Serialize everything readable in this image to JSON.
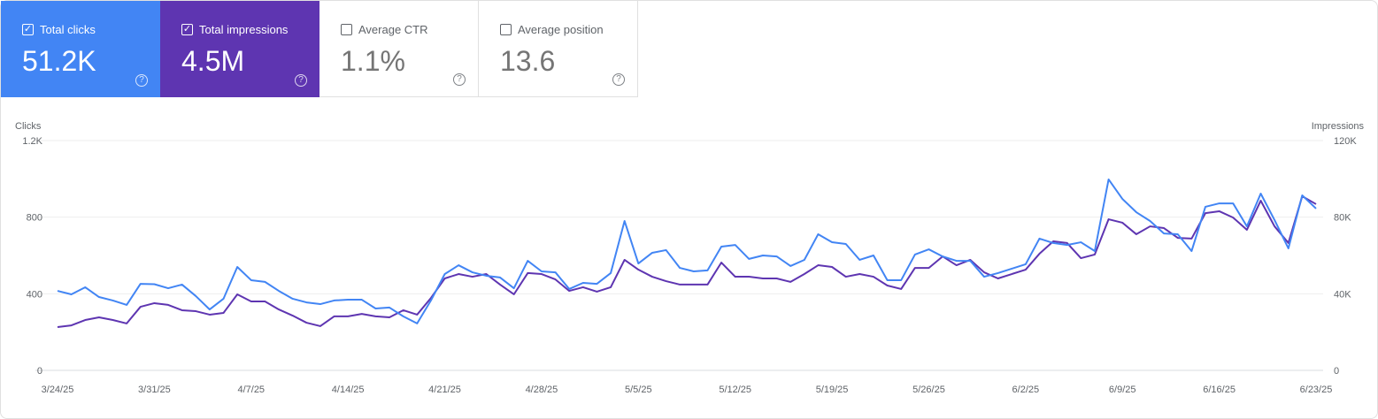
{
  "cards": [
    {
      "label": "Total clicks",
      "value": "51.2K",
      "checked": true,
      "color": "#4285f4"
    },
    {
      "label": "Total impressions",
      "value": "4.5M",
      "checked": true,
      "color": "#5e35b1"
    },
    {
      "label": "Average CTR",
      "value": "1.1%",
      "checked": false
    },
    {
      "label": "Average position",
      "value": "13.6",
      "checked": false
    }
  ],
  "icons": {
    "checkbox_checked": "✓",
    "help": "?"
  },
  "chart_data": {
    "type": "line",
    "left_axis_label": "Clicks",
    "right_axis_label": "Impressions",
    "left_ylim": [
      0,
      1200
    ],
    "right_ylim": [
      0,
      120000
    ],
    "left_ticks": [
      "0",
      "400",
      "800",
      "1.2K"
    ],
    "right_ticks": [
      "0",
      "40K",
      "80K",
      "120K"
    ],
    "x_ticks": [
      "3/24/25",
      "3/31/25",
      "4/7/25",
      "4/14/25",
      "4/21/25",
      "4/28/25",
      "5/5/25",
      "5/12/25",
      "5/19/25",
      "5/26/25",
      "6/2/25",
      "6/9/25",
      "6/16/25",
      "6/23/25"
    ],
    "x": [
      "3/24/25",
      "3/25/25",
      "3/26/25",
      "3/27/25",
      "3/28/25",
      "3/29/25",
      "3/30/25",
      "3/31/25",
      "4/1/25",
      "4/2/25",
      "4/3/25",
      "4/4/25",
      "4/5/25",
      "4/6/25",
      "4/7/25",
      "4/8/25",
      "4/9/25",
      "4/10/25",
      "4/11/25",
      "4/12/25",
      "4/13/25",
      "4/14/25",
      "4/15/25",
      "4/16/25",
      "4/17/25",
      "4/18/25",
      "4/19/25",
      "4/20/25",
      "4/21/25",
      "4/22/25",
      "4/23/25",
      "4/24/25",
      "4/25/25",
      "4/26/25",
      "4/27/25",
      "4/28/25",
      "4/29/25",
      "4/30/25",
      "5/1/25",
      "5/2/25",
      "5/3/25",
      "5/4/25",
      "5/5/25",
      "5/6/25",
      "5/7/25",
      "5/8/25",
      "5/9/25",
      "5/10/25",
      "5/11/25",
      "5/12/25",
      "5/13/25",
      "5/14/25",
      "5/15/25",
      "5/16/25",
      "5/17/25",
      "5/18/25",
      "5/19/25",
      "5/20/25",
      "5/21/25",
      "5/22/25",
      "5/23/25",
      "5/24/25",
      "5/25/25",
      "5/26/25",
      "5/27/25",
      "5/28/25",
      "5/29/25",
      "5/30/25",
      "5/31/25",
      "6/1/25",
      "6/2/25",
      "6/3/25",
      "6/4/25",
      "6/5/25",
      "6/6/25",
      "6/7/25",
      "6/8/25",
      "6/9/25",
      "6/10/25",
      "6/11/25",
      "6/12/25",
      "6/13/25",
      "6/14/25",
      "6/15/25",
      "6/16/25",
      "6/17/25",
      "6/18/25",
      "6/19/25",
      "6/20/25",
      "6/21/25",
      "6/22/25",
      "6/23/25"
    ],
    "series": [
      {
        "name": "Clicks",
        "axis": "left",
        "color": "#4285f4",
        "values": [
          415,
          397,
          434,
          383,
          365,
          342,
          452,
          450,
          429,
          448,
          388,
          318,
          374,
          540,
          471,
          462,
          415,
          374,
          355,
          346,
          365,
          369,
          369,
          323,
          328,
          282,
          245,
          365,
          503,
          549,
          512,
          494,
          485,
          429,
          572,
          517,
          512,
          425,
          457,
          452,
          508,
          780,
          558,
          614,
          628,
          535,
          517,
          522,
          646,
          655,
          582,
          600,
          595,
          545,
          577,
          711,
          669,
          660,
          577,
          600,
          471,
          471,
          605,
          632,
          595,
          572,
          572,
          489,
          508,
          531,
          554,
          688,
          665,
          655,
          669,
          623,
          997,
          895,
          826,
          780,
          715,
          711,
          623,
          854,
          872,
          872,
          752,
          923,
          785,
          637,
          914,
          845
        ]
      },
      {
        "name": "Impressions",
        "axis": "right",
        "color": "#5e35b1",
        "values": [
          22600,
          23500,
          26300,
          27700,
          26300,
          24500,
          33200,
          35100,
          34200,
          31400,
          30900,
          29100,
          30000,
          39700,
          36000,
          36000,
          31800,
          28600,
          24900,
          23100,
          28200,
          28200,
          29500,
          28200,
          27700,
          31400,
          29100,
          37800,
          48000,
          50300,
          48900,
          50300,
          44800,
          39700,
          50800,
          50300,
          47500,
          41500,
          43400,
          41100,
          43400,
          57700,
          52600,
          48900,
          46600,
          44800,
          44800,
          44800,
          56300,
          48900,
          48900,
          48000,
          48000,
          46200,
          50300,
          54900,
          54000,
          48900,
          50300,
          48900,
          44300,
          42500,
          53500,
          53500,
          59500,
          54900,
          57700,
          51200,
          48000,
          50300,
          52600,
          60900,
          67400,
          66500,
          58600,
          60500,
          78900,
          77100,
          71100,
          75200,
          74300,
          69200,
          68800,
          82100,
          83100,
          79800,
          73400,
          88600,
          75200,
          66500,
          90900,
          86800
        ]
      }
    ],
    "grid": true
  }
}
